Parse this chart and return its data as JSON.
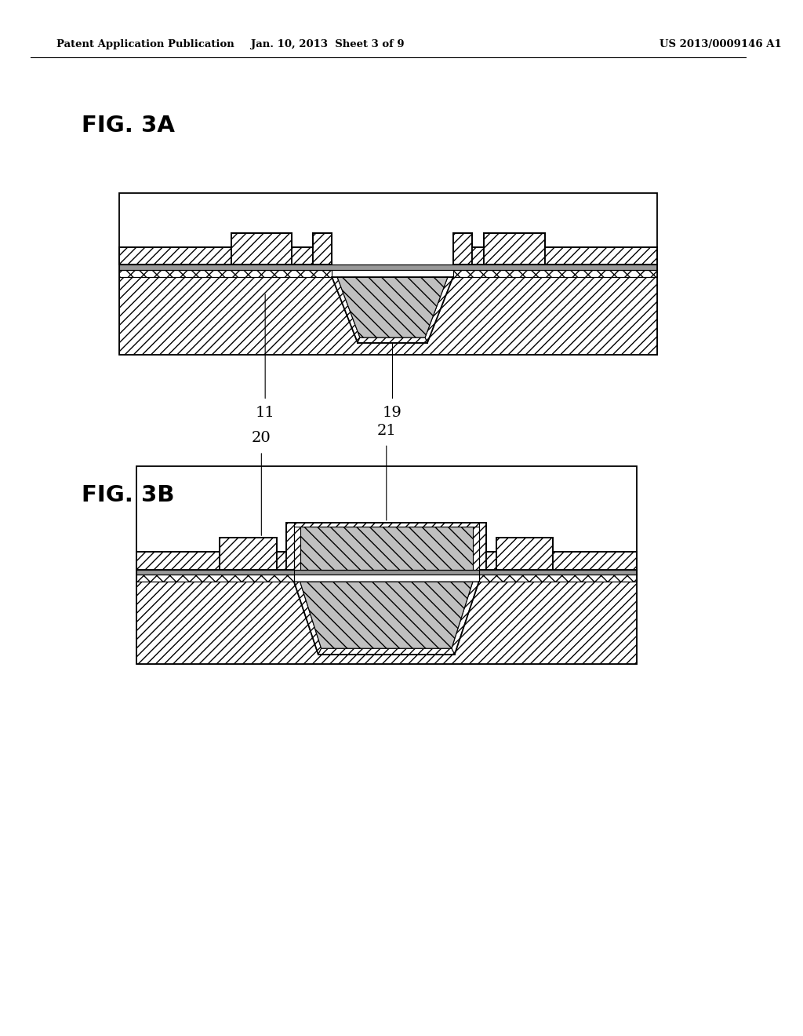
{
  "header_left": "Patent Application Publication",
  "header_mid": "Jan. 10, 2013  Sheet 3 of 9",
  "header_right": "US 2013/0009146 A1",
  "fig3a_label": "FIG. 3A",
  "fig3b_label": "FIG. 3B",
  "label_11": "11",
  "label_19": "19",
  "label_20": "20",
  "label_21": "21",
  "bg_color": "#ffffff"
}
